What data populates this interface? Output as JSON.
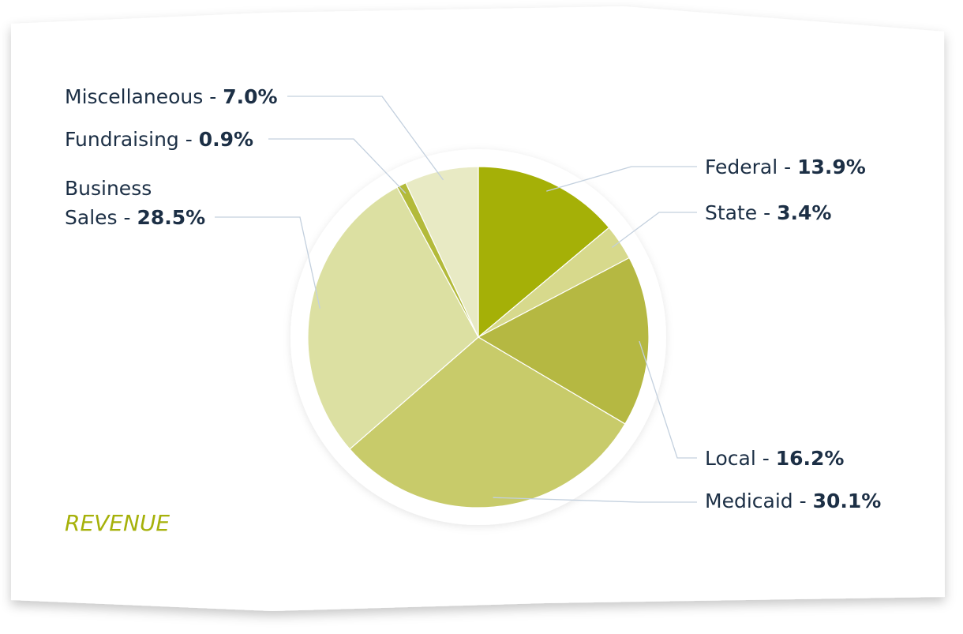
{
  "chart_data": {
    "type": "pie",
    "title": "REVENUE",
    "slices": [
      {
        "label": "Federal",
        "name_text": "Federal - ",
        "value": 13.9,
        "value_text": "13.9%",
        "color": "#a5b007"
      },
      {
        "label": "State",
        "name_text": "State - ",
        "value": 3.4,
        "value_text": "3.4%",
        "color": "#d7d98c"
      },
      {
        "label": "Local",
        "name_text": "Local - ",
        "value": 16.2,
        "value_text": "16.2%",
        "color": "#b5b842"
      },
      {
        "label": "Medicaid",
        "name_text": "Medicaid - ",
        "value": 30.1,
        "value_text": "30.1%",
        "color": "#c8cb6a"
      },
      {
        "label": "Business Sales",
        "name_lines": [
          "Business",
          "Sales - "
        ],
        "value": 28.5,
        "value_text": "28.5%",
        "color": "#dce0a2"
      },
      {
        "label": "Fundraising",
        "name_text": "Fundraising - ",
        "value": 0.9,
        "value_text": "0.9%",
        "color": "#b3ba3a"
      },
      {
        "label": "Miscellaneous",
        "name_text": "Miscellaneous - ",
        "value": 7.0,
        "value_text": "7.0%",
        "color": "#e8eac4"
      }
    ],
    "colors": {
      "title": "#a6b10a",
      "label_text": "#1c2f45",
      "leader_line": "#c3d0de"
    }
  }
}
